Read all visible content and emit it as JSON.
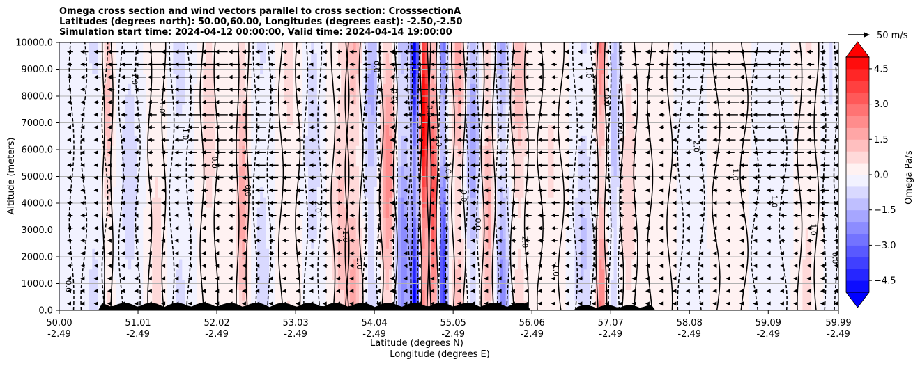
{
  "chart_data": {
    "type": "heatmap",
    "title_lines": [
      "Omega cross section and wind vectors parallel to cross section: CrosssectionA",
      "Latitudes (degrees north): 50.00,60.00, Longitudes (degrees east): -2.50,-2.50",
      "Simulation start time: 2024-04-12 00:00:00, Valid time: 2024-04-14 19:00:00"
    ],
    "ylabel": "Altitude (meters)",
    "xlabel_lines": [
      "Latitude (degrees N)",
      "Longitude (degrees E)"
    ],
    "ylim": [
      0,
      10000
    ],
    "xlim": [
      50.0,
      59.99
    ],
    "y_ticks": [
      0,
      1000,
      2000,
      3000,
      4000,
      5000,
      6000,
      7000,
      8000,
      9000,
      10000
    ],
    "y_tick_labels": [
      "0.0",
      "1000.0",
      "2000.0",
      "3000.0",
      "4000.0",
      "5000.0",
      "6000.0",
      "7000.0",
      "8000.0",
      "9000.0",
      "10000.0"
    ],
    "x_ticks": [
      50.0,
      51.01,
      52.02,
      53.03,
      54.04,
      55.05,
      56.06,
      57.07,
      58.08,
      59.09,
      59.99
    ],
    "x_tick_lat_labels": [
      "50.00",
      "51.01",
      "52.02",
      "53.03",
      "54.04",
      "55.05",
      "56.06",
      "57.07",
      "58.08",
      "59.09",
      "59.99"
    ],
    "x_tick_lon_labels": [
      "-2.49",
      "-2.49",
      "-2.49",
      "-2.49",
      "-2.49",
      "-2.49",
      "-2.49",
      "-2.49",
      "-2.49",
      "-2.49",
      "-2.49"
    ],
    "grid": "horizontal",
    "colorbar": {
      "label": "Omega Pa/s",
      "range": [
        -5,
        5
      ],
      "extend": "both",
      "ticks": [
        4.5,
        3.0,
        1.5,
        0.0,
        -1.5,
        -3.0,
        -4.5
      ],
      "tick_labels": [
        "4.5",
        "3.0",
        "1.5",
        "0.0",
        "−1.5",
        "−3.0",
        "−4.5"
      ],
      "levels": 20
    },
    "quiver_key": {
      "label": "50 m/s",
      "speed": 50
    },
    "contour_labels": [
      "0.0",
      "0.0",
      "0.0",
      "0.0",
      "0.0",
      "0.0",
      "0.0",
      "0.0",
      "0.0",
      "0.0",
      "1.0",
      "1.0",
      "1.0",
      "1.0",
      "1.0",
      "1.0",
      "-1.0",
      "-1.0",
      "-1.0",
      "-1.0",
      "-1.0",
      "-1.0",
      "2.0",
      "2.0",
      "-2.0",
      "-2.0"
    ],
    "omega_bands": [
      {
        "lat": 50.05,
        "w": 0.12,
        "v": -0.4
      },
      {
        "lat": 50.45,
        "w": 0.15,
        "v": -0.6
      },
      {
        "lat": 50.62,
        "w": 0.06,
        "v": 1.3
      },
      {
        "lat": 50.9,
        "w": 0.12,
        "v": -0.8
      },
      {
        "lat": 51.25,
        "w": 0.1,
        "v": 0.7
      },
      {
        "lat": 51.55,
        "w": 0.12,
        "v": -0.7
      },
      {
        "lat": 51.92,
        "w": 0.1,
        "v": 0.8
      },
      {
        "lat": 52.35,
        "w": 0.07,
        "v": 1.7
      },
      {
        "lat": 52.6,
        "w": 0.1,
        "v": -0.8
      },
      {
        "lat": 52.95,
        "w": 0.12,
        "v": 0.6
      },
      {
        "lat": 53.25,
        "w": 0.1,
        "v": -0.9
      },
      {
        "lat": 53.6,
        "w": 0.1,
        "v": 1.1
      },
      {
        "lat": 53.78,
        "w": 0.1,
        "v": 1.6
      },
      {
        "lat": 54.0,
        "w": 0.1,
        "v": -1.5
      },
      {
        "lat": 54.22,
        "w": 0.1,
        "v": 2.2
      },
      {
        "lat": 54.4,
        "w": 0.1,
        "v": -2.3
      },
      {
        "lat": 54.56,
        "w": 0.05,
        "v": -5.0
      },
      {
        "lat": 54.68,
        "w": 0.05,
        "v": 5.0
      },
      {
        "lat": 54.8,
        "w": 0.05,
        "v": 3.5
      },
      {
        "lat": 54.92,
        "w": 0.05,
        "v": -3.8
      },
      {
        "lat": 55.12,
        "w": 0.08,
        "v": 1.7
      },
      {
        "lat": 55.3,
        "w": 0.08,
        "v": -1.8
      },
      {
        "lat": 55.5,
        "w": 0.08,
        "v": 1.5
      },
      {
        "lat": 55.68,
        "w": 0.08,
        "v": -2.1
      },
      {
        "lat": 55.9,
        "w": 0.1,
        "v": 1.2
      },
      {
        "lat": 56.3,
        "w": 0.15,
        "v": 0.5
      },
      {
        "lat": 56.72,
        "w": 0.12,
        "v": -1.0
      },
      {
        "lat": 56.95,
        "w": 0.06,
        "v": 2.6
      },
      {
        "lat": 57.12,
        "w": 0.07,
        "v": -1.4
      },
      {
        "lat": 57.3,
        "w": 0.1,
        "v": 0.9
      },
      {
        "lat": 57.7,
        "w": 0.14,
        "v": 0.4
      },
      {
        "lat": 58.1,
        "w": 0.15,
        "v": -0.3
      },
      {
        "lat": 58.6,
        "w": 0.2,
        "v": 0.3
      },
      {
        "lat": 59.1,
        "w": 0.2,
        "v": -0.3
      },
      {
        "lat": 59.6,
        "w": 0.12,
        "v": 0.6
      },
      {
        "lat": 59.88,
        "w": 0.08,
        "v": -0.5
      }
    ]
  }
}
